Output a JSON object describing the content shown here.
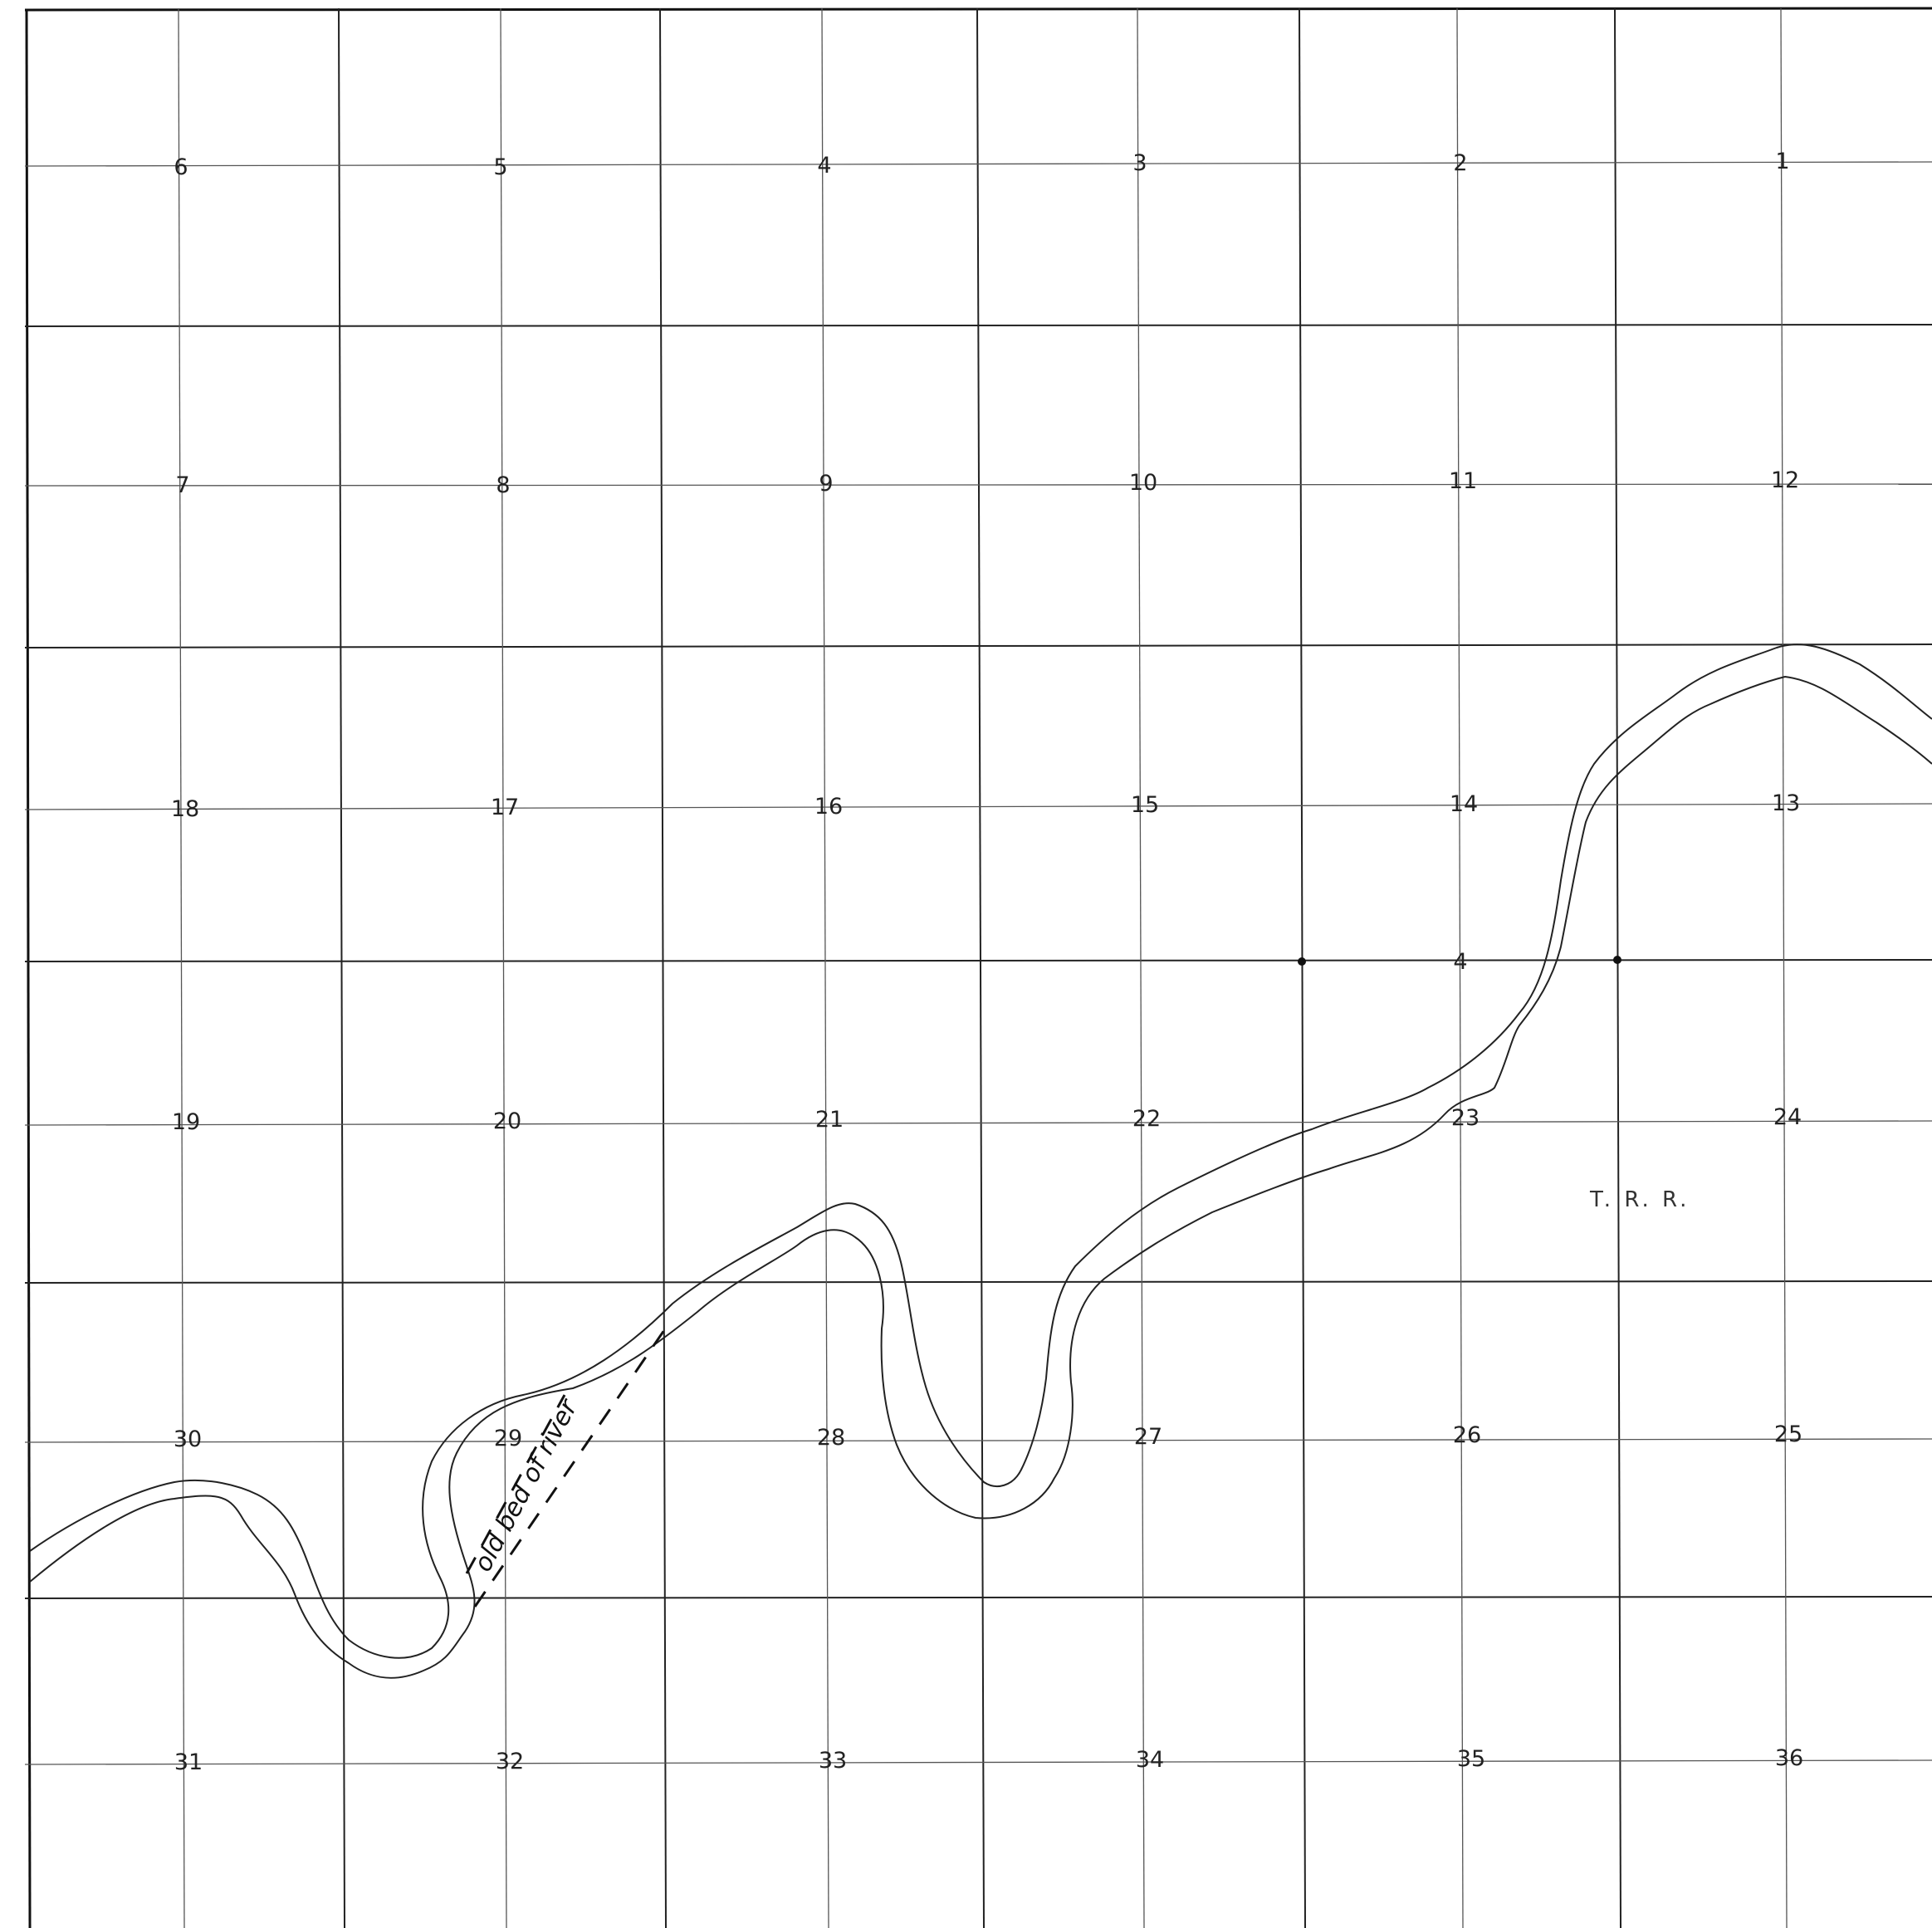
{
  "map": {
    "sections": [
      {
        "id": "s6",
        "label": "6"
      },
      {
        "id": "s5",
        "label": "5"
      },
      {
        "id": "s4",
        "label": "4"
      },
      {
        "id": "s3",
        "label": "3"
      },
      {
        "id": "s2",
        "label": "2"
      },
      {
        "id": "s1",
        "label": "1"
      },
      {
        "id": "s7",
        "label": "7"
      },
      {
        "id": "s8",
        "label": "8"
      },
      {
        "id": "s9",
        "label": "9"
      },
      {
        "id": "s10",
        "label": "10"
      },
      {
        "id": "s11",
        "label": "11"
      },
      {
        "id": "s12",
        "label": "12"
      },
      {
        "id": "s18",
        "label": "18"
      },
      {
        "id": "s17",
        "label": "17"
      },
      {
        "id": "s16",
        "label": "16"
      },
      {
        "id": "s15",
        "label": "15"
      },
      {
        "id": "s14",
        "label": "14"
      },
      {
        "id": "s13",
        "label": "13"
      },
      {
        "id": "s19",
        "label": "19"
      },
      {
        "id": "s20",
        "label": "20"
      },
      {
        "id": "s21",
        "label": "21"
      },
      {
        "id": "s22",
        "label": "22"
      },
      {
        "id": "s23",
        "label": "23"
      },
      {
        "id": "s24",
        "label": "24"
      },
      {
        "id": "s30",
        "label": "30"
      },
      {
        "id": "s29",
        "label": "29"
      },
      {
        "id": "s28",
        "label": "28"
      },
      {
        "id": "s27",
        "label": "27"
      },
      {
        "id": "s26",
        "label": "26"
      },
      {
        "id": "s25",
        "label": "25"
      },
      {
        "id": "s31",
        "label": "31"
      },
      {
        "id": "s32",
        "label": "32"
      },
      {
        "id": "s33",
        "label": "33"
      },
      {
        "id": "s34",
        "label": "34"
      },
      {
        "id": "s35",
        "label": "35"
      },
      {
        "id": "s36",
        "label": "36"
      }
    ],
    "quarter_mark_label": "4",
    "river_label": "old bed of river",
    "township_label": "T. R. R."
  }
}
